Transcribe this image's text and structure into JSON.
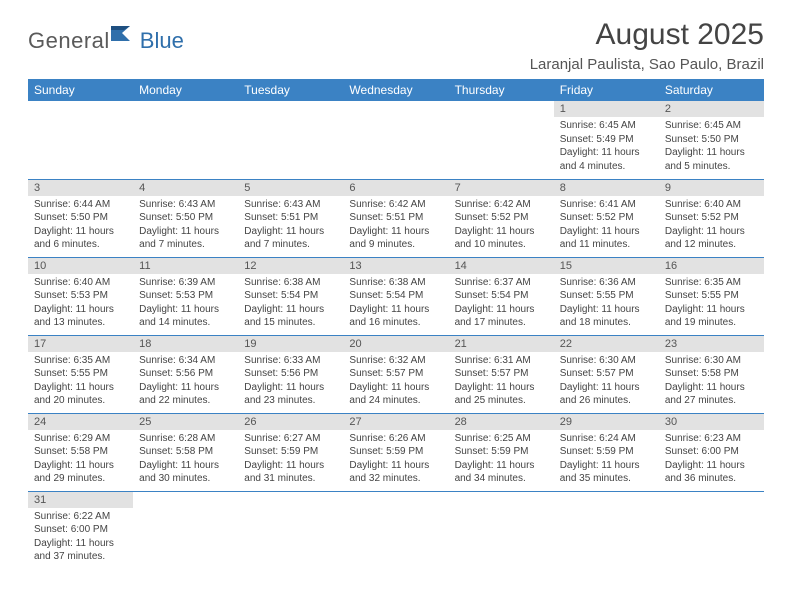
{
  "brand": {
    "text_gray": "General",
    "text_blue": "Blue",
    "gray_color": "#5a5a5a",
    "blue_color": "#2f6fab"
  },
  "title": "August 2025",
  "location": "Laranjal Paulista, Sao Paulo, Brazil",
  "header_bg": "#3b82c4",
  "header_fg": "#ffffff",
  "daynum_bg": "#e2e2e2",
  "row_border": "#3b82c4",
  "weekdays": [
    "Sunday",
    "Monday",
    "Tuesday",
    "Wednesday",
    "Thursday",
    "Friday",
    "Saturday"
  ],
  "weeks": [
    [
      {
        "empty": true
      },
      {
        "empty": true
      },
      {
        "empty": true
      },
      {
        "empty": true
      },
      {
        "empty": true
      },
      {
        "num": "1",
        "sunrise": "Sunrise: 6:45 AM",
        "sunset": "Sunset: 5:49 PM",
        "daylight": "Daylight: 11 hours and 4 minutes."
      },
      {
        "num": "2",
        "sunrise": "Sunrise: 6:45 AM",
        "sunset": "Sunset: 5:50 PM",
        "daylight": "Daylight: 11 hours and 5 minutes."
      }
    ],
    [
      {
        "num": "3",
        "sunrise": "Sunrise: 6:44 AM",
        "sunset": "Sunset: 5:50 PM",
        "daylight": "Daylight: 11 hours and 6 minutes."
      },
      {
        "num": "4",
        "sunrise": "Sunrise: 6:43 AM",
        "sunset": "Sunset: 5:50 PM",
        "daylight": "Daylight: 11 hours and 7 minutes."
      },
      {
        "num": "5",
        "sunrise": "Sunrise: 6:43 AM",
        "sunset": "Sunset: 5:51 PM",
        "daylight": "Daylight: 11 hours and 7 minutes."
      },
      {
        "num": "6",
        "sunrise": "Sunrise: 6:42 AM",
        "sunset": "Sunset: 5:51 PM",
        "daylight": "Daylight: 11 hours and 9 minutes."
      },
      {
        "num": "7",
        "sunrise": "Sunrise: 6:42 AM",
        "sunset": "Sunset: 5:52 PM",
        "daylight": "Daylight: 11 hours and 10 minutes."
      },
      {
        "num": "8",
        "sunrise": "Sunrise: 6:41 AM",
        "sunset": "Sunset: 5:52 PM",
        "daylight": "Daylight: 11 hours and 11 minutes."
      },
      {
        "num": "9",
        "sunrise": "Sunrise: 6:40 AM",
        "sunset": "Sunset: 5:52 PM",
        "daylight": "Daylight: 11 hours and 12 minutes."
      }
    ],
    [
      {
        "num": "10",
        "sunrise": "Sunrise: 6:40 AM",
        "sunset": "Sunset: 5:53 PM",
        "daylight": "Daylight: 11 hours and 13 minutes."
      },
      {
        "num": "11",
        "sunrise": "Sunrise: 6:39 AM",
        "sunset": "Sunset: 5:53 PM",
        "daylight": "Daylight: 11 hours and 14 minutes."
      },
      {
        "num": "12",
        "sunrise": "Sunrise: 6:38 AM",
        "sunset": "Sunset: 5:54 PM",
        "daylight": "Daylight: 11 hours and 15 minutes."
      },
      {
        "num": "13",
        "sunrise": "Sunrise: 6:38 AM",
        "sunset": "Sunset: 5:54 PM",
        "daylight": "Daylight: 11 hours and 16 minutes."
      },
      {
        "num": "14",
        "sunrise": "Sunrise: 6:37 AM",
        "sunset": "Sunset: 5:54 PM",
        "daylight": "Daylight: 11 hours and 17 minutes."
      },
      {
        "num": "15",
        "sunrise": "Sunrise: 6:36 AM",
        "sunset": "Sunset: 5:55 PM",
        "daylight": "Daylight: 11 hours and 18 minutes."
      },
      {
        "num": "16",
        "sunrise": "Sunrise: 6:35 AM",
        "sunset": "Sunset: 5:55 PM",
        "daylight": "Daylight: 11 hours and 19 minutes."
      }
    ],
    [
      {
        "num": "17",
        "sunrise": "Sunrise: 6:35 AM",
        "sunset": "Sunset: 5:55 PM",
        "daylight": "Daylight: 11 hours and 20 minutes."
      },
      {
        "num": "18",
        "sunrise": "Sunrise: 6:34 AM",
        "sunset": "Sunset: 5:56 PM",
        "daylight": "Daylight: 11 hours and 22 minutes."
      },
      {
        "num": "19",
        "sunrise": "Sunrise: 6:33 AM",
        "sunset": "Sunset: 5:56 PM",
        "daylight": "Daylight: 11 hours and 23 minutes."
      },
      {
        "num": "20",
        "sunrise": "Sunrise: 6:32 AM",
        "sunset": "Sunset: 5:57 PM",
        "daylight": "Daylight: 11 hours and 24 minutes."
      },
      {
        "num": "21",
        "sunrise": "Sunrise: 6:31 AM",
        "sunset": "Sunset: 5:57 PM",
        "daylight": "Daylight: 11 hours and 25 minutes."
      },
      {
        "num": "22",
        "sunrise": "Sunrise: 6:30 AM",
        "sunset": "Sunset: 5:57 PM",
        "daylight": "Daylight: 11 hours and 26 minutes."
      },
      {
        "num": "23",
        "sunrise": "Sunrise: 6:30 AM",
        "sunset": "Sunset: 5:58 PM",
        "daylight": "Daylight: 11 hours and 27 minutes."
      }
    ],
    [
      {
        "num": "24",
        "sunrise": "Sunrise: 6:29 AM",
        "sunset": "Sunset: 5:58 PM",
        "daylight": "Daylight: 11 hours and 29 minutes."
      },
      {
        "num": "25",
        "sunrise": "Sunrise: 6:28 AM",
        "sunset": "Sunset: 5:58 PM",
        "daylight": "Daylight: 11 hours and 30 minutes."
      },
      {
        "num": "26",
        "sunrise": "Sunrise: 6:27 AM",
        "sunset": "Sunset: 5:59 PM",
        "daylight": "Daylight: 11 hours and 31 minutes."
      },
      {
        "num": "27",
        "sunrise": "Sunrise: 6:26 AM",
        "sunset": "Sunset: 5:59 PM",
        "daylight": "Daylight: 11 hours and 32 minutes."
      },
      {
        "num": "28",
        "sunrise": "Sunrise: 6:25 AM",
        "sunset": "Sunset: 5:59 PM",
        "daylight": "Daylight: 11 hours and 34 minutes."
      },
      {
        "num": "29",
        "sunrise": "Sunrise: 6:24 AM",
        "sunset": "Sunset: 5:59 PM",
        "daylight": "Daylight: 11 hours and 35 minutes."
      },
      {
        "num": "30",
        "sunrise": "Sunrise: 6:23 AM",
        "sunset": "Sunset: 6:00 PM",
        "daylight": "Daylight: 11 hours and 36 minutes."
      }
    ],
    [
      {
        "num": "31",
        "sunrise": "Sunrise: 6:22 AM",
        "sunset": "Sunset: 6:00 PM",
        "daylight": "Daylight: 11 hours and 37 minutes."
      },
      {
        "empty": true
      },
      {
        "empty": true
      },
      {
        "empty": true
      },
      {
        "empty": true
      },
      {
        "empty": true
      },
      {
        "empty": true
      }
    ]
  ]
}
